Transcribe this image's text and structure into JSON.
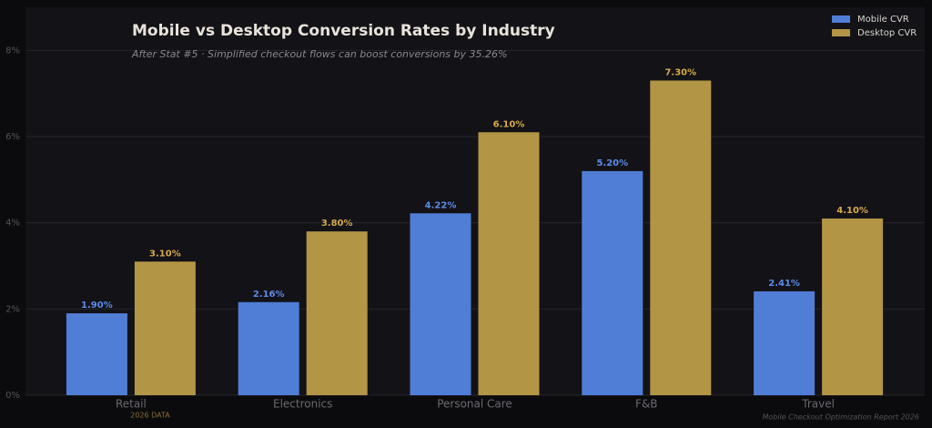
{
  "chart_data": {
    "type": "bar",
    "title": "Mobile vs Desktop Conversion Rates by Industry",
    "subtitle": "After Stat #5 · Simplified checkout flows can boost conversions by 35.26%",
    "footer_left": "2026 DATA",
    "footer_right": "Mobile Checkout Optimization Report 2026",
    "categories": [
      "Retail",
      "Electronics",
      "Personal Care",
      "F&B",
      "Travel"
    ],
    "series": [
      {
        "name": "Mobile CVR",
        "color": "#507ed6",
        "label_color": "#5b8de8",
        "values": [
          1.9,
          2.16,
          4.22,
          5.2,
          2.41
        ],
        "value_labels": [
          "1.90%",
          "2.16%",
          "4.22%",
          "5.20%",
          "2.41%"
        ]
      },
      {
        "name": "Desktop CVR",
        "color": "#b39546",
        "label_color": "#d4a94a",
        "values": [
          3.1,
          3.8,
          6.1,
          7.3,
          4.1
        ],
        "value_labels": [
          "3.10%",
          "3.80%",
          "6.10%",
          "7.30%",
          "4.10%"
        ]
      }
    ],
    "ylim": [
      0,
      9
    ],
    "yticks": [
      {
        "value": 0,
        "label": "0%"
      },
      {
        "value": 2,
        "label": "2%"
      },
      {
        "value": 4,
        "label": "4%"
      },
      {
        "value": 6,
        "label": "6%"
      },
      {
        "value": 8,
        "label": "8%"
      }
    ],
    "grid": true,
    "legend": "upper right"
  }
}
